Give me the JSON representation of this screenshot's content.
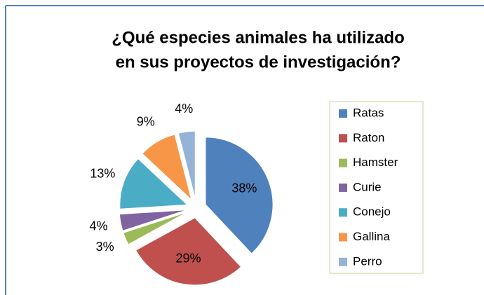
{
  "chart_data": {
    "type": "pie",
    "title": "¿Qué especies animales ha utilizado en sus proyectos de investigación?",
    "categories": [
      "Ratas",
      "Raton",
      "Hamster",
      "Curie",
      "Conejo",
      "Gallina",
      "Perro"
    ],
    "values": [
      38,
      29,
      3,
      4,
      13,
      9,
      4
    ],
    "value_labels": [
      "38%",
      "29%",
      "3%",
      "4%",
      "13%",
      "9%",
      "4%"
    ],
    "colors": [
      "#4f81bd",
      "#c0504d",
      "#9bbb59",
      "#8064a2",
      "#4bacc6",
      "#f79646",
      "#95b3d7"
    ],
    "legend": "right"
  }
}
